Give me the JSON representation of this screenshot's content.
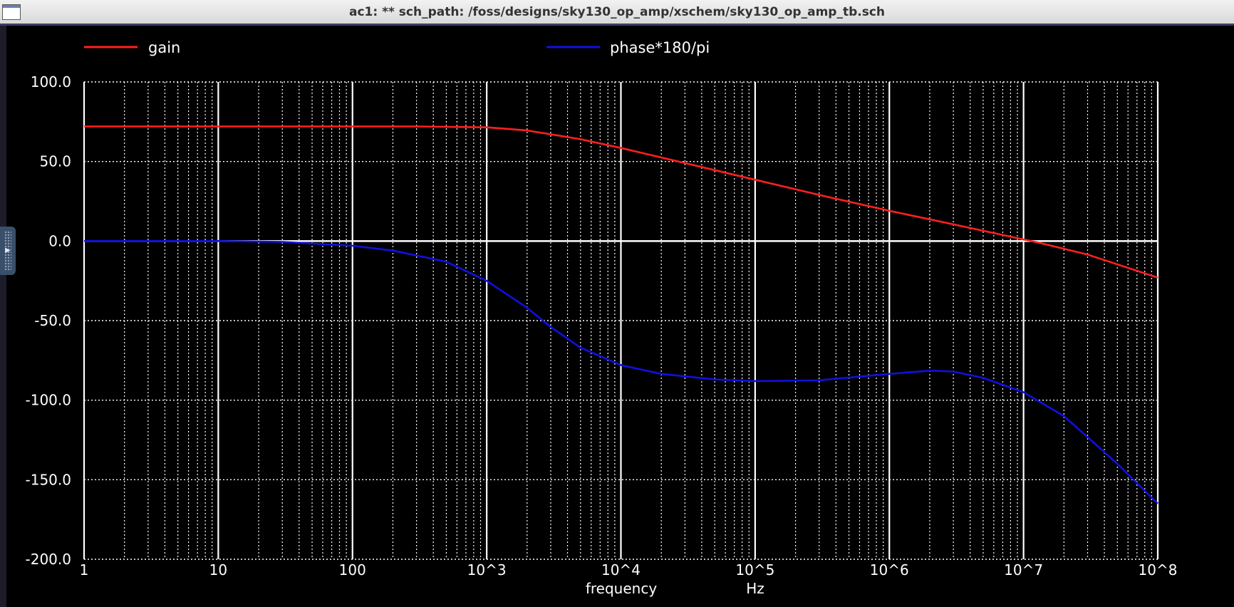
{
  "window": {
    "title": "ac1: ** sch_path: /foss/designs/sky130_op_amp/xschem/sky130_op_amp_tb.sch"
  },
  "chart_data": {
    "type": "line",
    "x_scale": "log",
    "xlim": [
      1,
      100000000
    ],
    "ylim": [
      -200,
      100
    ],
    "grid": true,
    "legend_position": "top",
    "x_tick_labels": [
      "1",
      "10",
      "100",
      "10^3",
      "10^4",
      "10^5",
      "10^6",
      "10^7",
      "10^8"
    ],
    "x_tick_values": [
      1,
      10,
      100,
      1000,
      10000,
      100000,
      1000000,
      10000000,
      100000000
    ],
    "y_tick_labels": [
      "100.0",
      "50.0",
      "0.0",
      "-50.0",
      "-100.0",
      "-150.0",
      "-200.0"
    ],
    "y_tick_values": [
      100,
      50,
      0,
      -50,
      -100,
      -150,
      -200
    ],
    "xlabel": "frequency",
    "xunit": "Hz",
    "series": [
      {
        "name": "gain",
        "color": "#ff2020",
        "x": [
          1,
          10,
          100,
          300,
          1000,
          2000,
          5000,
          10000,
          30000,
          100000,
          300000,
          1000000,
          3000000,
          10000000,
          13000000,
          30000000,
          100000000
        ],
        "y": [
          72,
          72,
          72,
          72,
          71.5,
          69.5,
          64,
          58.5,
          49,
          38.5,
          29,
          19,
          10.5,
          1,
          -1,
          -8.5,
          -23
        ]
      },
      {
        "name": "phase*180/pi",
        "color": "#1010e0",
        "x": [
          1,
          10,
          30,
          100,
          200,
          500,
          1000,
          2000,
          3000,
          5000,
          10000,
          20000,
          50000,
          100000,
          300000,
          1000000,
          2000000,
          3000000,
          5000000,
          10000000,
          20000000,
          50000000,
          100000000
        ],
        "y": [
          0,
          0,
          -0.5,
          -3,
          -6,
          -13,
          -25,
          -42,
          -54,
          -67,
          -78,
          -83.5,
          -87,
          -88,
          -87.5,
          -83.5,
          -81.5,
          -82,
          -86,
          -95,
          -110,
          -140,
          -165
        ]
      }
    ]
  }
}
